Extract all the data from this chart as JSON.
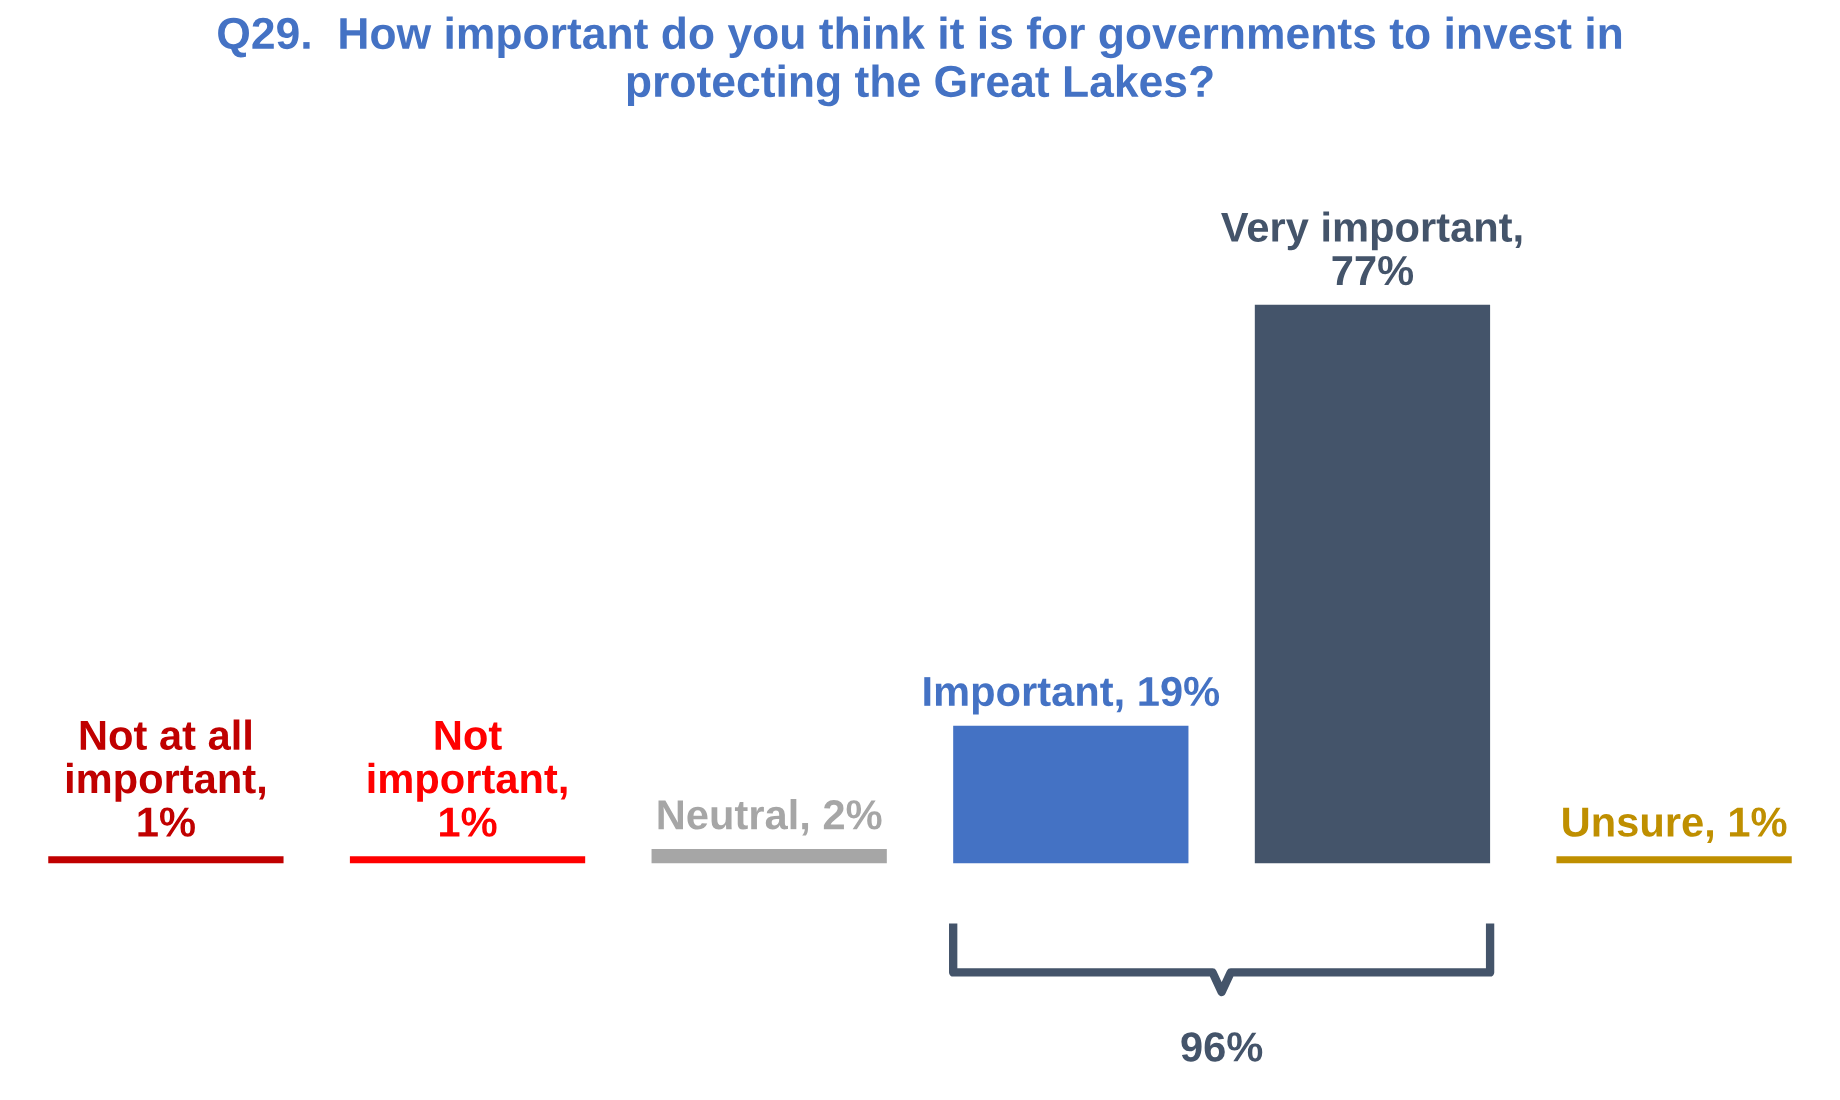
{
  "chart_data": {
    "type": "bar",
    "title": "Q29.  How important do you think it is for governments to invest in\nprotecting the Great Lakes?",
    "categories": [
      null,
      null,
      null,
      null,
      null,
      null
    ],
    "values": [
      1,
      1,
      2,
      19,
      77,
      1
    ],
    "colors": [
      "#c00000",
      "#ff0000",
      "#a6a6a6",
      "#4472c4",
      "#44546a",
      "#bf8f00"
    ],
    "value_labels": [
      "Not at all\nimportant,\n1%",
      "Not\nimportant,\n1%",
      "Neutral, 2%",
      "Important, 19%",
      "Very important,\n77%",
      "Unsure, 1%"
    ],
    "annotations": [
      "96%"
    ]
  }
}
